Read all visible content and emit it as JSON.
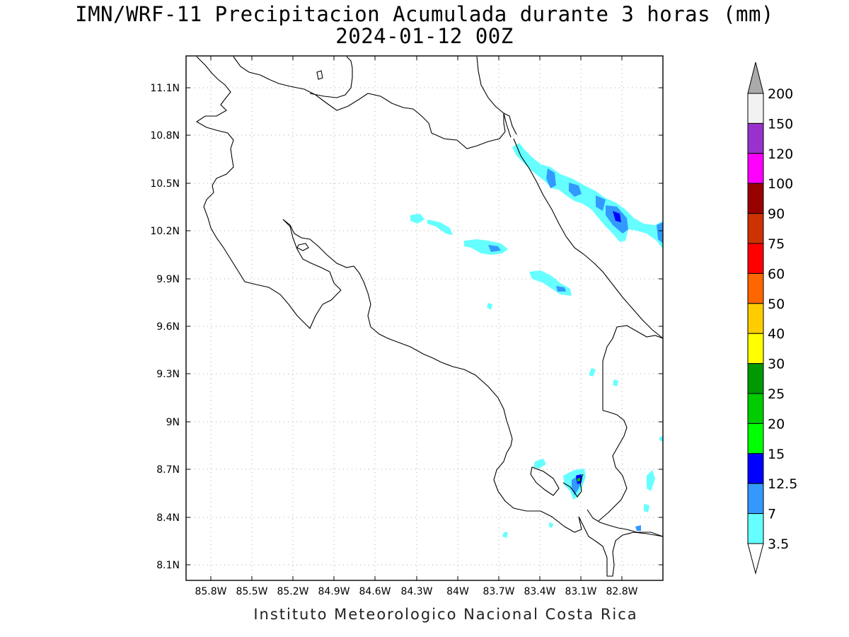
{
  "header": {
    "title": "IMN/WRF-11 Precipitacion Acumulada durante 3 horas (mm)",
    "subtitle": "2024-01-12 00Z"
  },
  "footer": {
    "credit": "Instituto Meteorologico Nacional Costa Rica"
  },
  "map": {
    "lon_ticks": [
      "85.8W",
      "85.5W",
      "85.2W",
      "84.9W",
      "84.6W",
      "84.3W",
      "84W",
      "83.7W",
      "83.4W",
      "83.1W",
      "82.8W"
    ],
    "lat_ticks": [
      "11.1N",
      "10.8N",
      "10.5N",
      "10.2N",
      "9.9N",
      "9.6N",
      "9.3N",
      "9N",
      "8.7N",
      "8.4N",
      "8.1N"
    ],
    "lon_range": [
      -86.0,
      -82.55
    ],
    "lat_range": [
      7.98,
      11.3
    ],
    "grid": "dotted"
  },
  "colorbar": {
    "labels": [
      "200",
      "150",
      "120",
      "100",
      "90",
      "75",
      "60",
      "50",
      "40",
      "30",
      "25",
      "20",
      "15",
      "12.5",
      "7",
      "3.5"
    ],
    "colors": [
      "#f2f2f2",
      "#9932cc",
      "#ff00ff",
      "#990000",
      "#cc3300",
      "#ff0000",
      "#ff6600",
      "#ffcc00",
      "#ffff00",
      "#009900",
      "#00cc00",
      "#00ff00",
      "#0000ff",
      "#3399ff",
      "#66ffff"
    ],
    "top_arrow_color": "#aaaaaa",
    "bottom_arrow_color": "#ffffff"
  },
  "legend_colors": {
    "light_cyan": "#66ffff",
    "mid_blue": "#3399ff",
    "blue": "#0000ff",
    "green": "#00cc00"
  }
}
